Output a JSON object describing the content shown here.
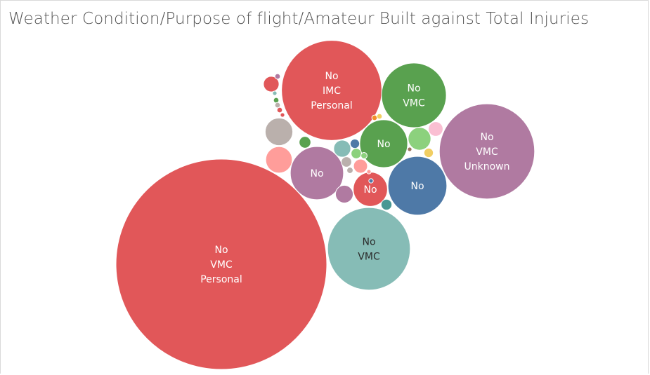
{
  "chart_data": {
    "type": "bubble",
    "title": "Weather Condition/Purpose of flight/Amateur Built against Total Injuries",
    "measure": "Total Injuries",
    "dimensions": [
      "Amateur Built",
      "Weather Condition",
      "Purpose of flight"
    ],
    "bubbles": [
      {
        "id": "no-vmc-personal",
        "lines": [
          "No",
          "VMC",
          "Personal"
        ],
        "value": 4550,
        "color": "#e15759",
        "text": "light"
      },
      {
        "id": "no-imc-personal",
        "lines": [
          "No",
          "IMC",
          "Personal"
        ],
        "value": 1030,
        "color": "#e15759",
        "text": "light"
      },
      {
        "id": "no-vmc-unknown",
        "lines": [
          "No",
          "VMC",
          "Unknown"
        ],
        "value": 930,
        "color": "#b07aa1",
        "text": "light"
      },
      {
        "id": "no-vmc-teal",
        "lines": [
          "No",
          "VMC"
        ],
        "value": 700,
        "color": "#86bcb6",
        "text": "dark"
      },
      {
        "id": "no-vmc-green",
        "lines": [
          "No",
          "VMC"
        ],
        "value": 430,
        "color": "#59a14f",
        "text": "light"
      },
      {
        "id": "no-blue",
        "lines": [
          "No"
        ],
        "value": 355,
        "color": "#4e79a7",
        "text": "light"
      },
      {
        "id": "no-purple",
        "lines": [
          "No"
        ],
        "value": 290,
        "color": "#b07aa1",
        "text": "light"
      },
      {
        "id": "no-green",
        "lines": [
          "No"
        ],
        "value": 235,
        "color": "#59a14f",
        "text": "light"
      },
      {
        "id": "no-red",
        "lines": [
          "No"
        ],
        "value": 120,
        "color": "#e15759",
        "text": "light"
      },
      {
        "id": "small-gray",
        "lines": [],
        "value": 78,
        "color": "#bab0ac",
        "text": "none"
      },
      {
        "id": "small-pink",
        "lines": [],
        "value": 72,
        "color": "#ff9d9a",
        "text": "none"
      },
      {
        "id": "small-lightgreen",
        "lines": [],
        "value": 53,
        "color": "#8cd17d",
        "text": "none"
      },
      {
        "id": "small-teal",
        "lines": [],
        "value": 30,
        "color": "#86bcb6",
        "text": "none"
      },
      {
        "id": "small-purple",
        "lines": [],
        "value": 32,
        "color": "#b07aa1",
        "text": "none"
      },
      {
        "id": "small-red",
        "lines": [],
        "value": 25,
        "color": "#e15759",
        "text": "none"
      },
      {
        "id": "small-lightpink",
        "lines": [],
        "value": 22,
        "color": "#fabfd2",
        "text": "none"
      },
      {
        "id": "small-salmon",
        "lines": [],
        "value": 20,
        "color": "#ff9d9a",
        "text": "none"
      },
      {
        "id": "small-green2",
        "lines": [],
        "value": 14,
        "color": "#59a14f",
        "text": "none"
      },
      {
        "id": "small-teal2",
        "lines": [],
        "value": 12,
        "color": "#499894",
        "text": "none"
      },
      {
        "id": "small-lightgreen2",
        "lines": [],
        "value": 11,
        "color": "#8cd17d",
        "text": "none"
      },
      {
        "id": "small-gray2",
        "lines": [],
        "value": 11,
        "color": "#bab0ac",
        "text": "none"
      },
      {
        "id": "small-yellow",
        "lines": [],
        "value": 9,
        "color": "#f1ce63",
        "text": "none"
      },
      {
        "id": "small-blue",
        "lines": [],
        "value": 9,
        "color": "#4e79a7",
        "text": "none"
      },
      {
        "id": "tiny-1",
        "lines": [],
        "value": 4,
        "color": "#8cd17d",
        "text": "none"
      },
      {
        "id": "tiny-2",
        "lines": [],
        "value": 4,
        "color": "#bab0ac",
        "text": "none"
      },
      {
        "id": "tiny-3",
        "lines": [],
        "value": 3,
        "color": "#59a14f",
        "text": "none"
      },
      {
        "id": "tiny-4",
        "lines": [],
        "value": 3,
        "color": "#e15759",
        "text": "none"
      },
      {
        "id": "tiny-5",
        "lines": [],
        "value": 3,
        "color": "#b07aa1",
        "text": "none"
      },
      {
        "id": "tiny-6",
        "lines": [],
        "value": 3,
        "color": "#f28e2b",
        "text": "none"
      },
      {
        "id": "tiny-7",
        "lines": [],
        "value": 3,
        "color": "#f1ce63",
        "text": "none"
      },
      {
        "id": "tiny-8",
        "lines": [],
        "value": 3,
        "color": "#bab0ac",
        "text": "none"
      },
      {
        "id": "tiny-9",
        "lines": [],
        "value": 2,
        "color": "#e15759",
        "text": "none"
      },
      {
        "id": "tiny-10",
        "lines": [],
        "value": 2,
        "color": "#9c755f",
        "text": "none"
      },
      {
        "id": "tiny-11",
        "lines": [],
        "value": 2,
        "color": "#ff9d9a",
        "text": "none"
      },
      {
        "id": "tiny-12",
        "lines": [],
        "value": 2,
        "color": "#86bcb6",
        "text": "none"
      },
      {
        "id": "tiny-13",
        "lines": [],
        "value": 2,
        "color": "#4e79a7",
        "text": "none"
      }
    ]
  }
}
